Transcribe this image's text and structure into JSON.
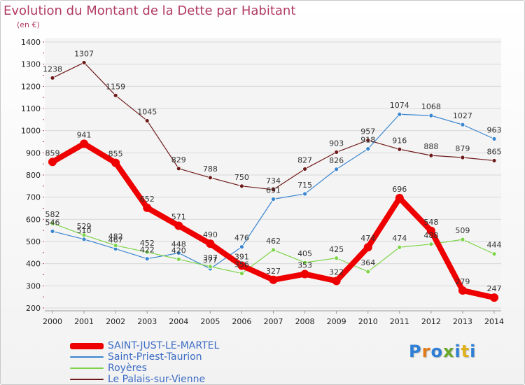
{
  "chart_data": {
    "type": "line",
    "title": "Evolution du Montant de la Dette par Habitant",
    "subtitle": "(en €)",
    "xlabel": "",
    "ylabel": "",
    "x": [
      "2000",
      "2001",
      "2002",
      "2003",
      "2004",
      "2005",
      "2006",
      "2007",
      "2008",
      "2009",
      "2010",
      "2011",
      "2012",
      "2013",
      "2014"
    ],
    "ylim": [
      200,
      1400
    ],
    "yticks": [
      200,
      300,
      400,
      500,
      600,
      700,
      800,
      900,
      1000,
      1100,
      1200,
      1300,
      1400
    ],
    "grid": true,
    "legend_position": "bottom-left",
    "series": [
      {
        "name": "SAINT-JUST-LE-MARTEL",
        "color": "#ee0000",
        "values": [
          859,
          941,
          855,
          652,
          571,
          490,
          391,
          327,
          353,
          322,
          474,
          696,
          548,
          279,
          247
        ]
      },
      {
        "name": "Saint-Priest-Taurion",
        "color": "#3a86d0",
        "values": [
          546,
          510,
          467,
          422,
          448,
          377,
          476,
          691,
          715,
          826,
          918,
          1074,
          1068,
          1027,
          963
        ]
      },
      {
        "name": "Royères",
        "color": "#7dd44a",
        "values": [
          582,
          529,
          482,
          452,
          420,
          387,
          356,
          462,
          405,
          425,
          364,
          474,
          488,
          509,
          444
        ]
      },
      {
        "name": "Le Palais-sur-Vienne",
        "color": "#6e1a1a",
        "values": [
          1238,
          1307,
          1159,
          1045,
          829,
          788,
          750,
          734,
          827,
          903,
          957,
          916,
          888,
          879,
          865
        ]
      }
    ]
  },
  "legend": {
    "items": [
      {
        "label": "SAINT-JUST-LE-MARTEL"
      },
      {
        "label": "Saint-Priest-Taurion"
      },
      {
        "label": "Royères"
      },
      {
        "label": "Le Palais-sur-Vienne"
      }
    ]
  },
  "logo": {
    "text": "Proxiti",
    "colors": [
      "#2f7fd6",
      "#e07b1a",
      "#2f7fd6",
      "#6aa82a",
      "#2f7fd6",
      "#e0b21a",
      "#2f7fd6"
    ]
  }
}
